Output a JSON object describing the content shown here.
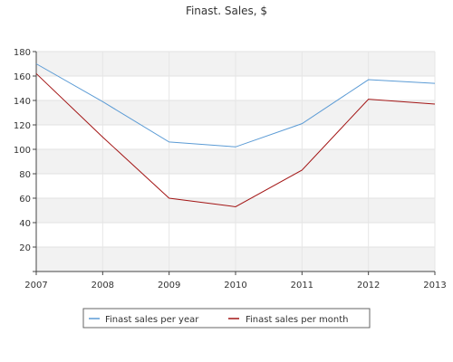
{
  "chart_data": {
    "type": "line",
    "title": "Finast. Sales, $",
    "xlabel": "",
    "ylabel": "",
    "x": [
      2007,
      2008,
      2009,
      2010,
      2011,
      2012,
      2013
    ],
    "x_ticks": [
      "2007",
      "2008",
      "2009",
      "2010",
      "2011",
      "2012",
      "2013"
    ],
    "ylim": [
      0,
      180
    ],
    "y_ticks": [
      "20",
      "40",
      "60",
      "80",
      "100",
      "120",
      "140",
      "160",
      "180"
    ],
    "grid": true,
    "legend_position": "bottom",
    "series": [
      {
        "name": "Finast sales per year",
        "color": "#5b9bd5",
        "values": [
          170,
          139,
          106,
          102,
          121,
          157,
          154
        ]
      },
      {
        "name": "Finast sales per month",
        "color": "#a31515",
        "values": [
          162,
          110,
          60,
          53,
          83,
          141,
          137
        ]
      }
    ]
  }
}
